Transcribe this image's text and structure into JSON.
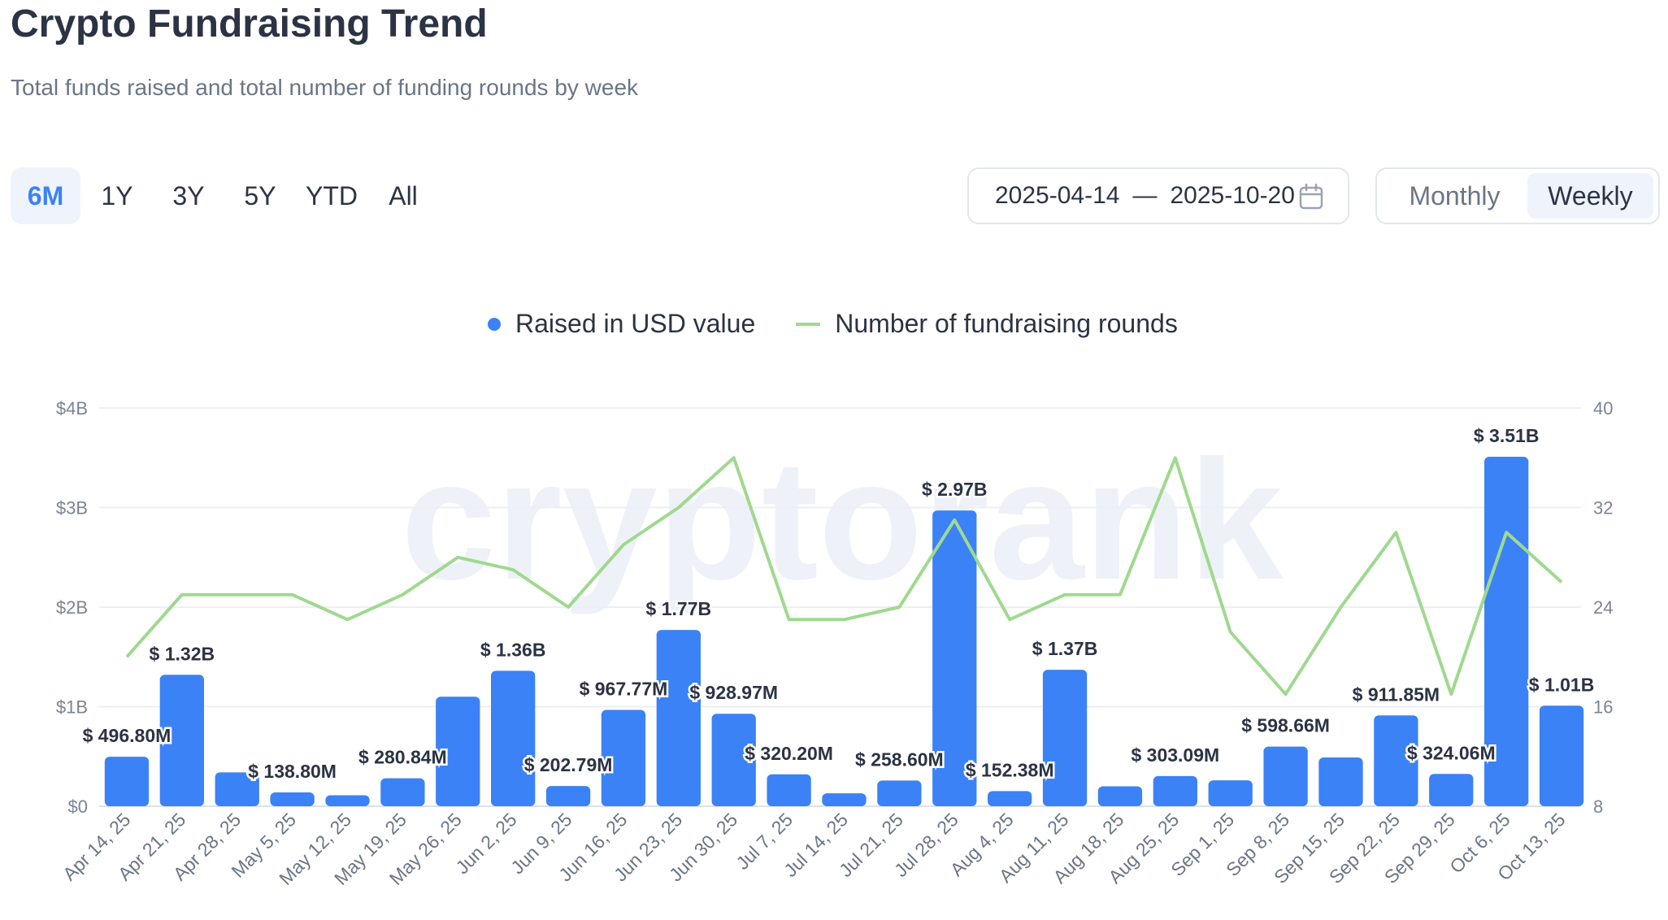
{
  "header": {
    "title": "Crypto Fundraising Trend",
    "subtitle": "Total funds raised and total number of funding rounds by week"
  },
  "range_buttons": [
    "6M",
    "1Y",
    "3Y",
    "5Y",
    "YTD",
    "All"
  ],
  "active_range": "6M",
  "date_range": {
    "start": "2025-04-14",
    "separator": "—",
    "end": "2025-10-20",
    "icon": "calendar-icon"
  },
  "period_toggle": {
    "monthly": "Monthly",
    "weekly": "Weekly",
    "selected": "Weekly"
  },
  "colors": {
    "bar": "#3b82f6",
    "line": "#9fd98f",
    "accent": "#3b82f6"
  },
  "watermark": "cryptorank",
  "chart_data": {
    "type": "bar",
    "legend": {
      "position": "top-center",
      "entries": [
        "Raised in USD value",
        "Number of fundraising rounds"
      ]
    },
    "categories": [
      "Apr 14, 25",
      "Apr 21, 25",
      "Apr 28, 25",
      "May 5, 25",
      "May 12, 25",
      "May 19, 25",
      "May 26, 25",
      "Jun 2, 25",
      "Jun 9, 25",
      "Jun 16, 25",
      "Jun 23, 25",
      "Jun 30, 25",
      "Jul 7, 25",
      "Jul 14, 25",
      "Jul 21, 25",
      "Jul 28, 25",
      "Aug 4, 25",
      "Aug 11, 25",
      "Aug 18, 25",
      "Aug 25, 25",
      "Sep 1, 25",
      "Sep 8, 25",
      "Sep 15, 25",
      "Sep 22, 25",
      "Sep 29, 25",
      "Oct 6, 25",
      "Oct 13, 25"
    ],
    "series": [
      {
        "name": "Raised in USD value",
        "type": "bar",
        "axis": "left",
        "values": [
          0.4968,
          1.32,
          0.34,
          0.1388,
          0.11,
          0.28084,
          1.1,
          1.36,
          0.20279,
          0.96777,
          1.77,
          0.92897,
          0.3202,
          0.13,
          0.2586,
          2.97,
          0.15238,
          1.37,
          0.2,
          0.30309,
          0.26,
          0.59866,
          0.49,
          0.91185,
          0.32406,
          3.51,
          1.01
        ],
        "labels": [
          "$ 496.80M",
          "$ 1.32B",
          "",
          "$ 138.80M",
          "",
          "$ 280.84M",
          "",
          "$ 1.36B",
          "$ 202.79M",
          "$ 967.77M",
          "$ 1.77B",
          "$ 928.97M",
          "$ 320.20M",
          "",
          "$ 258.60M",
          "$ 2.97B",
          "$ 152.38M",
          "$ 1.37B",
          "",
          "$ 303.09M",
          "",
          "$ 598.66M",
          "",
          "$ 911.85M",
          "$ 324.06M",
          "$ 3.51B",
          "$ 1.01B"
        ]
      },
      {
        "name": "Number of fundraising rounds",
        "type": "line",
        "axis": "right",
        "values": [
          20,
          25,
          25,
          25,
          23,
          25,
          28,
          27,
          24,
          29,
          32,
          36,
          23,
          23,
          24,
          31,
          23,
          25,
          25,
          36,
          22,
          17,
          24,
          30,
          17,
          30,
          26
        ]
      }
    ],
    "y_left": {
      "ticks": [
        "$0",
        "$1B",
        "$2B",
        "$3B",
        "$4B"
      ],
      "range": [
        0,
        4
      ]
    },
    "y_right": {
      "ticks": [
        "8",
        "16",
        "24",
        "32",
        "40"
      ],
      "range": [
        8,
        40
      ]
    },
    "grid": true
  }
}
